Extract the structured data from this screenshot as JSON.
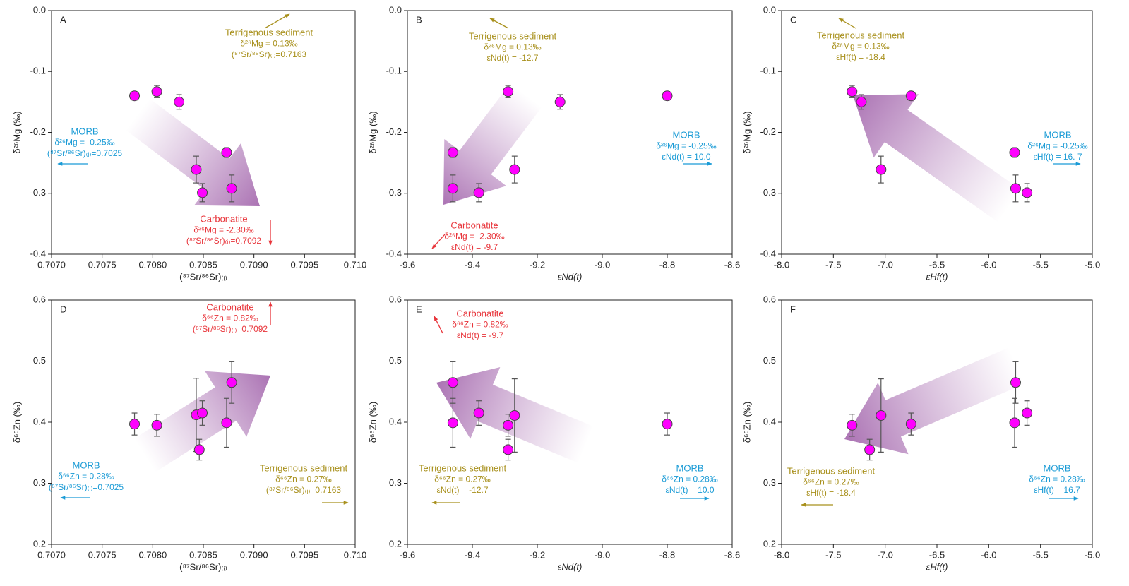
{
  "chart_data": [
    {
      "type": "scatter",
      "panel": "A",
      "x_label": "(⁸⁷Sr/⁸⁶Sr)₍ᵢ₎",
      "y_label": "δ²⁶Mg (‰)",
      "xlim": [
        0.707,
        0.71
      ],
      "ylim": [
        -0.4,
        0
      ],
      "xticks": [
        {
          "value": 0.707,
          "label": "0.7070"
        },
        0.7075,
        {
          "value": 0.708,
          "label": "0.7080"
        },
        0.7085,
        {
          "value": 0.709,
          "label": "0.7090"
        },
        0.7095,
        {
          "value": 0.71,
          "label": "0.710"
        }
      ],
      "yticks": [
        -0.4,
        -0.3,
        -0.2,
        -0.1,
        {
          "value": 0,
          "label": "0.0"
        }
      ],
      "color": "#ff00ff",
      "x": [
        0.70782,
        0.70804,
        0.70826,
        0.70843,
        0.70849,
        0.70873,
        0.70878
      ],
      "values": [
        -0.14,
        -0.133,
        -0.15,
        -0.261,
        -0.299,
        -0.233,
        -0.292
      ],
      "errors": [
        0.007,
        0.01,
        0.012,
        0.022,
        0.015,
        0.008,
        0.022
      ],
      "annotations": [
        {
          "color": "#a8901c",
          "lines": [
            "Terrigenous sediment",
            "δ²⁶Mg = 0.13‰",
            "(⁸⁷Sr/⁸⁶Sr)₍ᵢ₎=0.7163"
          ]
        },
        {
          "color": "#1a9bd6",
          "lines": [
            "MORB",
            "δ²⁶Mg = -0.25‰",
            "(⁸⁷Sr/⁸⁶Sr)₍ᵢ₎=0.7025"
          ]
        },
        {
          "color": "#e8343a",
          "lines": [
            "Carbonatite",
            "δ²⁶Mg = -2.30‰",
            "(⁸⁷Sr/⁸⁶Sr)₍ᵢ₎=0.7092"
          ]
        }
      ]
    },
    {
      "type": "scatter",
      "panel": "B",
      "x_label": "εNd(t)",
      "y_label": "δ²⁶Mg (‰)",
      "xlim": [
        -9.6,
        -8.6
      ],
      "ylim": [
        -0.4,
        0
      ],
      "xticks": [
        -9.6,
        -9.4,
        -9.2,
        {
          "value": -9,
          "label": "-9.0"
        },
        -8.8,
        -8.6
      ],
      "yticks": [
        -0.4,
        -0.3,
        -0.2,
        -0.1,
        {
          "value": 0,
          "label": "0.0"
        }
      ],
      "color": "#ff00ff",
      "x": [
        -8.8,
        -9.29,
        -9.13,
        -9.27,
        -9.38,
        -9.46,
        -9.46
      ],
      "values": [
        -0.14,
        -0.133,
        -0.15,
        -0.261,
        -0.299,
        -0.233,
        -0.292
      ],
      "errors": [
        0.007,
        0.01,
        0.012,
        0.022,
        0.015,
        0.008,
        0.022
      ],
      "annotations": [
        {
          "color": "#a8901c",
          "lines": [
            "Terrigenous sediment",
            "δ²⁶Mg = 0.13‰",
            "εNd(t) = -12.7"
          ]
        },
        {
          "color": "#1a9bd6",
          "lines": [
            "MORB",
            "δ²⁶Mg = -0.25‰",
            "εNd(t) = 10.0"
          ]
        },
        {
          "color": "#e8343a",
          "lines": [
            "Carbonatite",
            "δ²⁶Mg = -2.30‰",
            "εNd(t) = -9.7"
          ]
        }
      ]
    },
    {
      "type": "scatter",
      "panel": "C",
      "x_label": "εHf(t)",
      "y_label": "δ²⁶Mg (‰)",
      "xlim": [
        -8,
        -5
      ],
      "ylim": [
        -0.4,
        0
      ],
      "xticks": [
        {
          "value": -8,
          "label": "-8.0"
        },
        -7.5,
        {
          "value": -7,
          "label": "-7.0"
        },
        -6.5,
        {
          "value": -6,
          "label": "-6.0"
        },
        -5.5,
        {
          "value": -5,
          "label": "-5.0"
        }
      ],
      "yticks": [
        -0.4,
        -0.3,
        -0.2,
        -0.1,
        {
          "value": 0,
          "label": "0.0"
        }
      ],
      "color": "#ff00ff",
      "x": [
        -6.75,
        -7.32,
        -7.23,
        -7.04,
        -5.63,
        -5.75,
        -5.74
      ],
      "values": [
        -0.14,
        -0.133,
        -0.15,
        -0.261,
        -0.299,
        -0.233,
        -0.292
      ],
      "errors": [
        0.007,
        0.01,
        0.012,
        0.022,
        0.015,
        0.008,
        0.022
      ],
      "annotations": [
        {
          "color": "#a8901c",
          "lines": [
            "Terrigenous sediment",
            "δ²⁶Mg = 0.13‰",
            "εHf(t) = -18.4"
          ]
        },
        {
          "color": "#1a9bd6",
          "lines": [
            "MORB",
            "δ²⁶Mg = -0.25‰",
            "εHf(t) = 16. 7"
          ]
        }
      ]
    },
    {
      "type": "scatter",
      "panel": "D",
      "x_label": "(⁸⁷Sr/⁸⁶Sr)₍ᵢ₎",
      "y_label": "δ⁶⁶Zn (‰)",
      "xlim": [
        0.707,
        0.71
      ],
      "ylim": [
        0.2,
        0.6
      ],
      "xticks": [
        {
          "value": 0.707,
          "label": "0.7070"
        },
        0.7075,
        {
          "value": 0.708,
          "label": "0.7080"
        },
        0.7085,
        {
          "value": 0.709,
          "label": "0.7090"
        },
        0.7095,
        {
          "value": 0.71,
          "label": "0.710"
        }
      ],
      "yticks": [
        0.2,
        0.3,
        0.4,
        0.5,
        0.6
      ],
      "color": "#ff00ff",
      "x": [
        0.70782,
        0.70804,
        0.70843,
        0.70846,
        0.70849,
        0.70873,
        0.70878
      ],
      "values": [
        0.397,
        0.395,
        0.412,
        0.355,
        0.415,
        0.399,
        0.465
      ],
      "errors": [
        0.018,
        0.018,
        0.06,
        0.017,
        0.02,
        0.04,
        0.034
      ],
      "annotations": [
        {
          "color": "#e8343a",
          "lines": [
            "Carbonatite",
            "δ⁶⁶Zn = 0.82‰",
            "(⁸⁷Sr/⁸⁶Sr)₍ᵢ₎=0.7092"
          ]
        },
        {
          "color": "#1a9bd6",
          "lines": [
            "MORB",
            "δ⁶⁶Zn = 0.28‰",
            "(⁸⁷Sr/⁸⁶Sr)₍ᵢ₎=0.7025"
          ]
        },
        {
          "color": "#a8901c",
          "lines": [
            "Terrigenous sediment",
            "δ⁶⁶Zn = 0.27‰",
            "(⁸⁷Sr/⁸⁶Sr)₍ᵢ₎=0.7163"
          ]
        }
      ]
    },
    {
      "type": "scatter",
      "panel": "E",
      "x_label": "εNd(t)",
      "y_label": "δ⁶⁶Zn (‰)",
      "xlim": [
        -9.6,
        -8.6
      ],
      "ylim": [
        0.2,
        0.6
      ],
      "xticks": [
        -9.6,
        -9.4,
        -9.2,
        {
          "value": -9,
          "label": "-9.0"
        },
        -8.8,
        -8.6
      ],
      "yticks": [
        0.2,
        0.3,
        0.4,
        0.5,
        0.6
      ],
      "color": "#ff00ff",
      "x": [
        -8.8,
        -9.29,
        -9.27,
        -9.29,
        -9.38,
        -9.46,
        -9.46
      ],
      "values": [
        0.397,
        0.395,
        0.411,
        0.355,
        0.415,
        0.399,
        0.465
      ],
      "errors": [
        0.018,
        0.018,
        0.06,
        0.017,
        0.02,
        0.04,
        0.034
      ],
      "annotations": [
        {
          "color": "#e8343a",
          "lines": [
            "Carbonatite",
            "δ⁶⁶Zn = 0.82‰",
            "εNd(t) = -9.7"
          ]
        },
        {
          "color": "#a8901c",
          "lines": [
            "Terrigenous sediment",
            "δ⁶⁶Zn = 0.27‰",
            "εNd(t) = -12.7"
          ]
        },
        {
          "color": "#1a9bd6",
          "lines": [
            "MORB",
            "δ⁶⁶Zn = 0.28‰",
            "εNd(t) = 10.0"
          ]
        }
      ]
    },
    {
      "type": "scatter",
      "panel": "F",
      "x_label": "εHf(t)",
      "y_label": "δ⁶⁶Zn (‰)",
      "xlim": [
        -8,
        -5
      ],
      "ylim": [
        0.2,
        0.6
      ],
      "xticks": [
        {
          "value": -8,
          "label": "-8.0"
        },
        -7.5,
        {
          "value": -7,
          "label": "-7.0"
        },
        -6.5,
        {
          "value": -6,
          "label": "-6.0"
        },
        -5.5,
        {
          "value": -5,
          "label": "-5.0"
        }
      ],
      "yticks": [
        0.2,
        0.3,
        0.4,
        0.5,
        0.6
      ],
      "color": "#ff00ff",
      "x": [
        -6.75,
        -7.32,
        -7.04,
        -7.15,
        -5.63,
        -5.75,
        -5.74
      ],
      "values": [
        0.397,
        0.395,
        0.411,
        0.355,
        0.415,
        0.399,
        0.465
      ],
      "errors": [
        0.018,
        0.018,
        0.06,
        0.017,
        0.02,
        0.04,
        0.034
      ],
      "annotations": [
        {
          "color": "#a8901c",
          "lines": [
            "Terrigenous sediment",
            "δ⁶⁶Zn = 0.27‰",
            "εHf(t) = -18.4"
          ]
        },
        {
          "color": "#1a9bd6",
          "lines": [
            "MORB",
            "δ⁶⁶Zn = 0.28‰",
            "εHf(t) = 16.7"
          ]
        }
      ]
    }
  ]
}
